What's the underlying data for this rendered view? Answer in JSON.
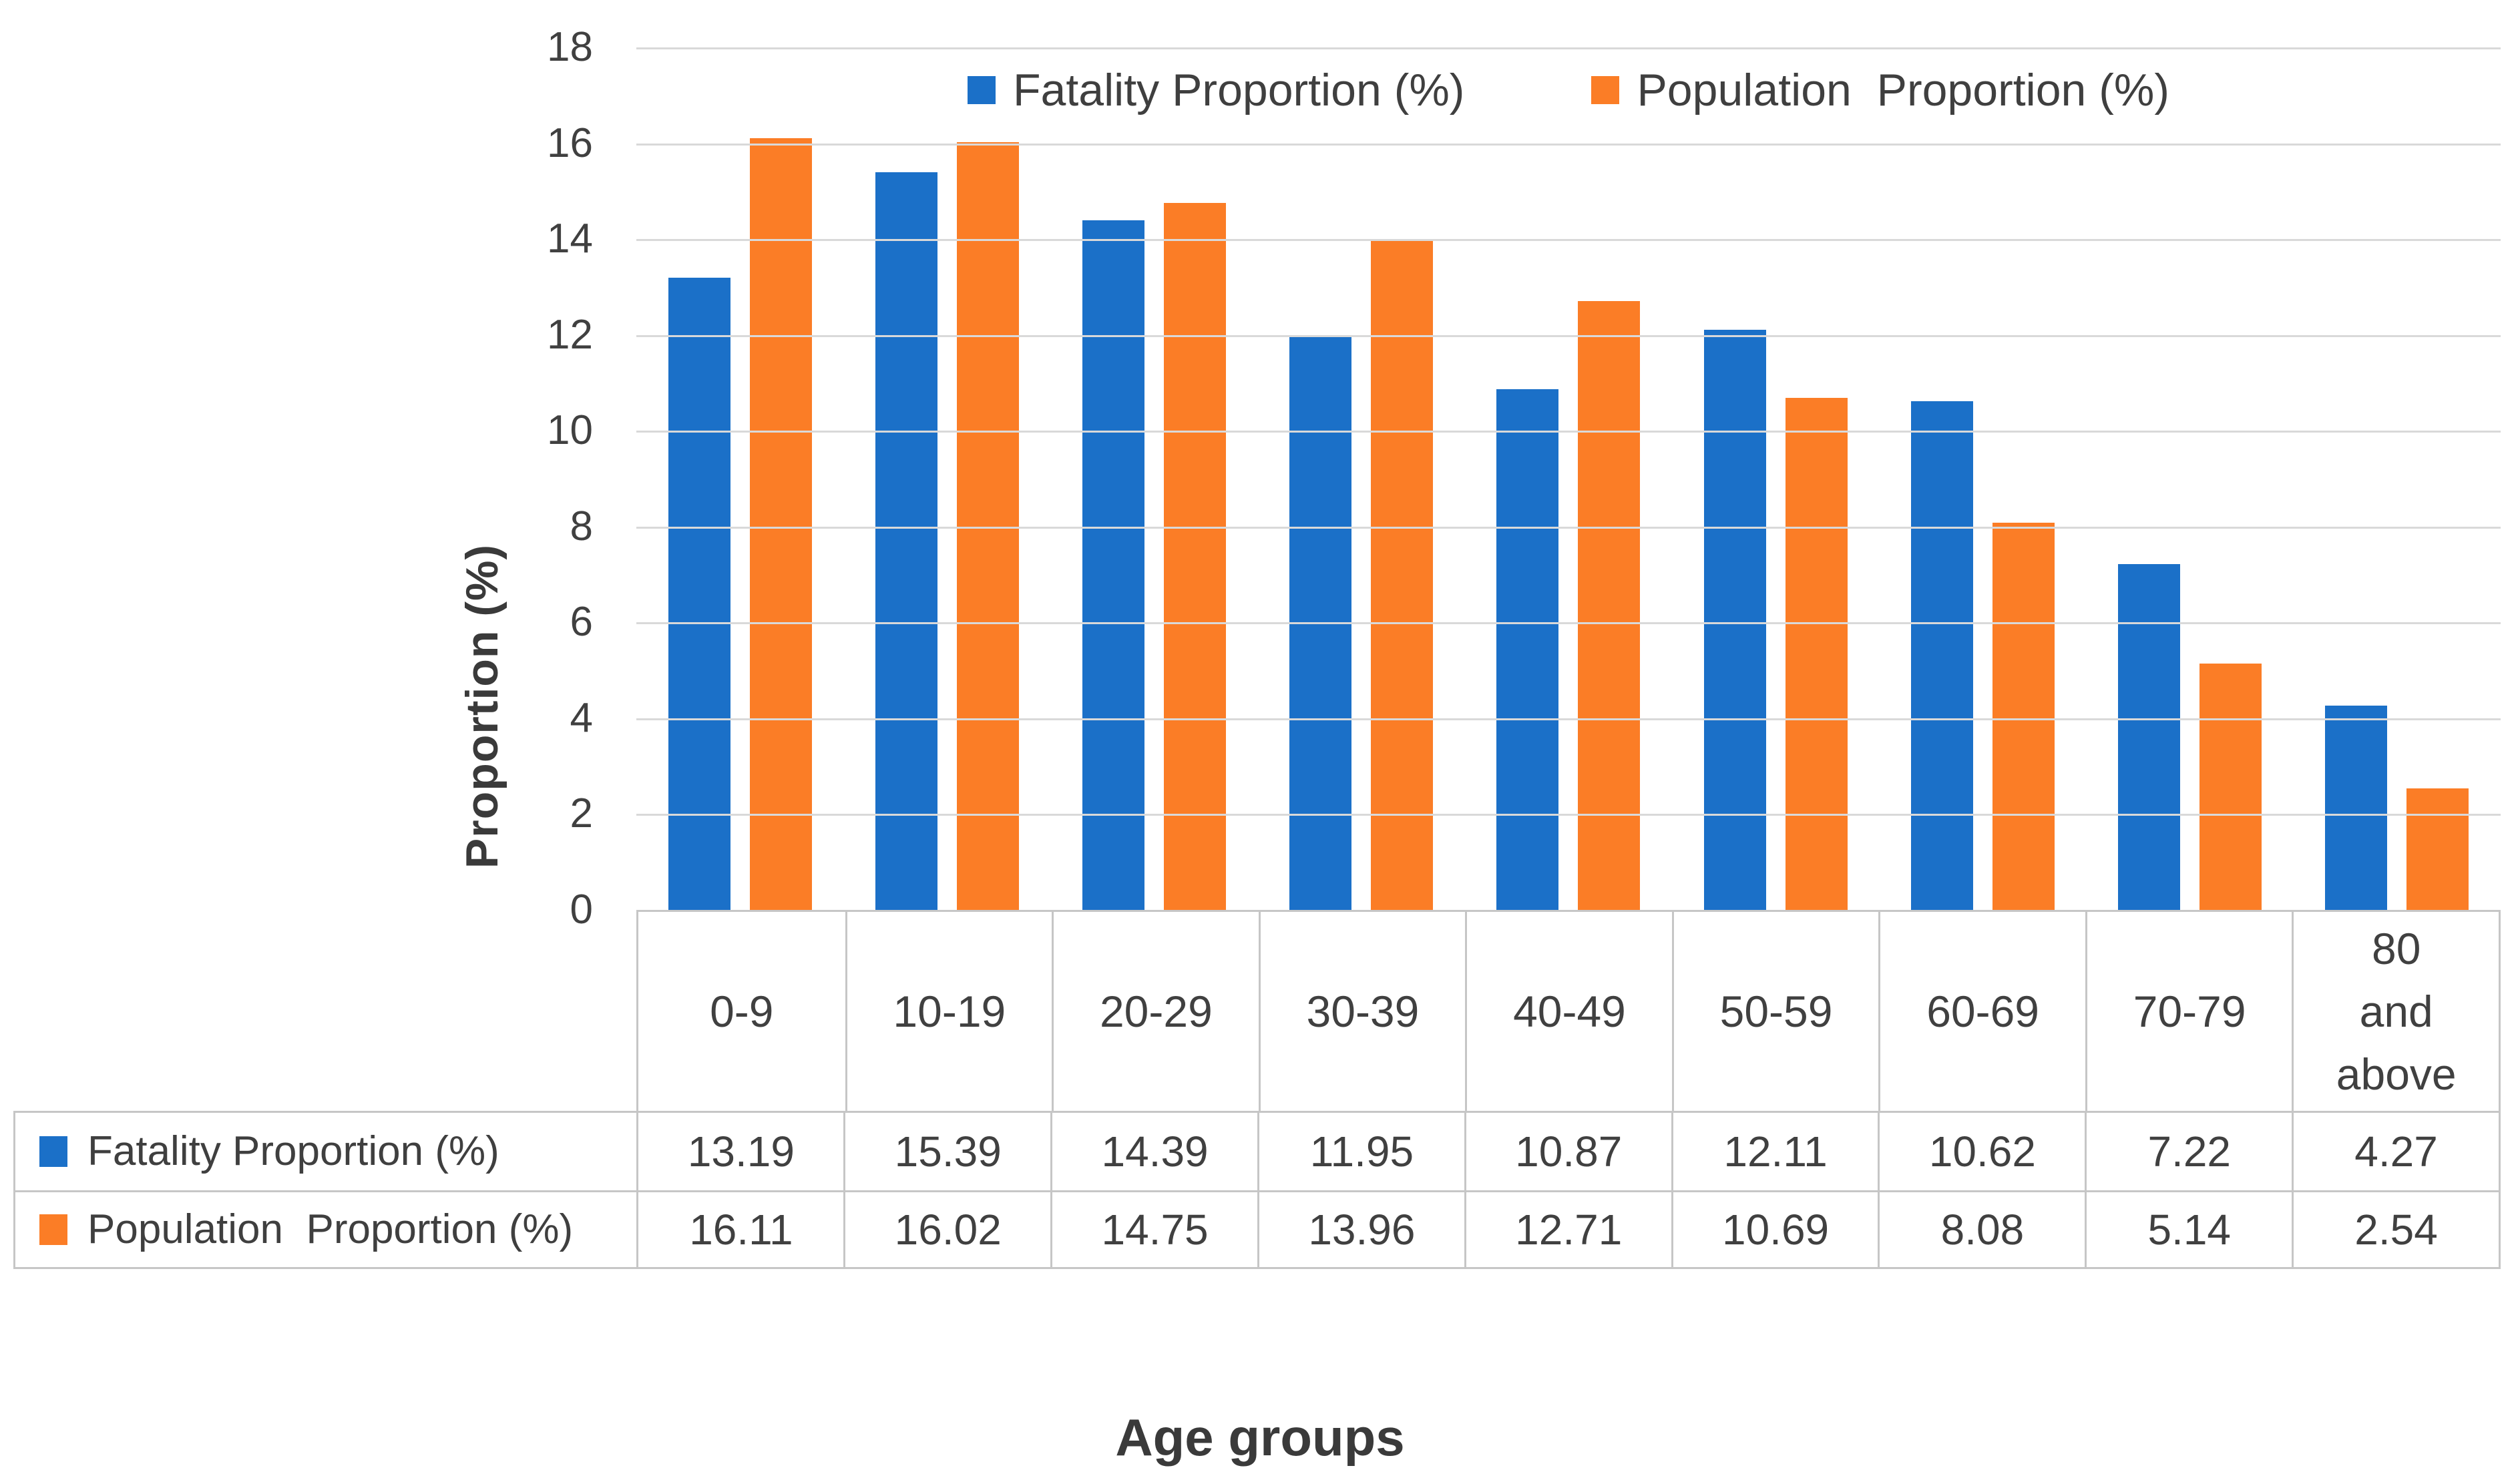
{
  "colors": {
    "fatality_blue": "#1B70C8",
    "population_orange": "#FB7D26",
    "gridline": "#D9D9D9",
    "table_border": "#C6C6C6",
    "tick_text": "#404040",
    "title_text": "#3A3A3A"
  },
  "legend": {
    "items": [
      {
        "label": "Fatality Proportion (%)"
      },
      {
        "label": "Population  Proportion (%)"
      }
    ]
  },
  "y_axis": {
    "title": "Proportion (%)",
    "ticks": [
      0,
      2,
      4,
      6,
      8,
      10,
      12,
      14,
      16,
      18
    ],
    "max": 18
  },
  "x_axis": {
    "title": "Age groups",
    "categories_display": [
      "0-9",
      "10-19",
      "20-29",
      "30-39",
      "40-49",
      "50-59",
      "60-69",
      "70-79",
      "80\nand\nabove"
    ]
  },
  "chart_data": {
    "type": "bar",
    "title": "",
    "categories": [
      "0-9",
      "10-19",
      "20-29",
      "30-39",
      "40-49",
      "50-59",
      "60-69",
      "70-79",
      "80 and above"
    ],
    "series": [
      {
        "name": "Fatality Proportion (%)",
        "key": "fatality",
        "color": "#1B70C8",
        "values": [
          13.19,
          15.39,
          14.39,
          11.95,
          10.87,
          12.11,
          10.62,
          7.22,
          4.27
        ]
      },
      {
        "name": "Population  Proportion (%)",
        "key": "population",
        "color": "#FB7D26",
        "values": [
          16.11,
          16.02,
          14.75,
          13.96,
          12.71,
          10.69,
          8.08,
          5.14,
          2.54
        ]
      }
    ],
    "xlabel": "Age groups",
    "ylabel": "Proportion (%)",
    "ylim": [
      0,
      18
    ],
    "grid": "horizontal",
    "legend_position": "top-center",
    "data_table_shown": true
  }
}
